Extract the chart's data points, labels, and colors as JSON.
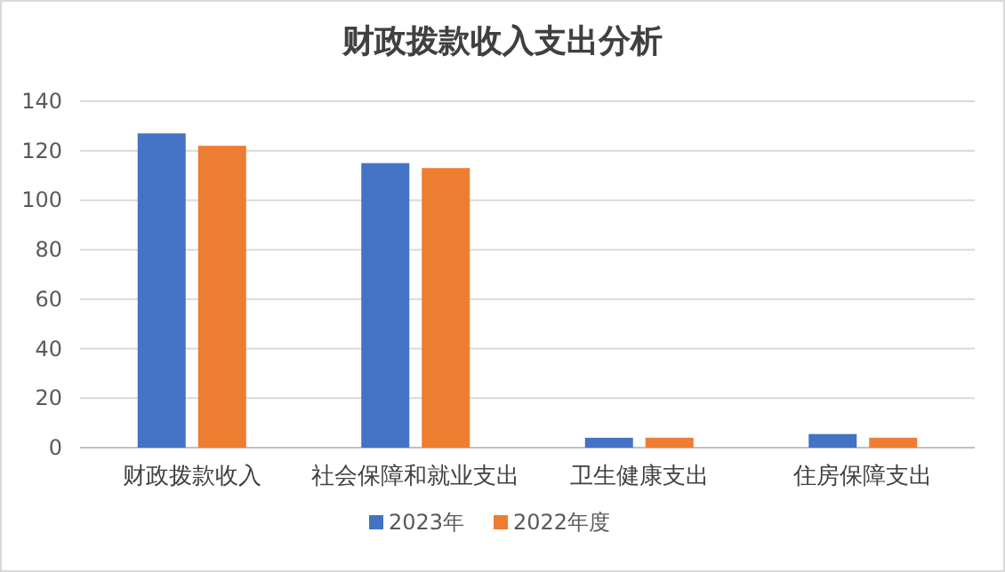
{
  "chart_data": {
    "type": "bar",
    "title": "财政拨款收入支出分析",
    "categories": [
      "财政拨款收入",
      "社会保障和就业支出",
      "卫生健康支出",
      "住房保障支出"
    ],
    "series": [
      {
        "name": "2023年",
        "color": "#4472c4",
        "values": [
          127,
          115,
          4,
          5.5
        ]
      },
      {
        "name": "2022年度",
        "color": "#ed7d31",
        "values": [
          122,
          113,
          4,
          4
        ]
      }
    ],
    "ylim": [
      0,
      140
    ],
    "yticks": [
      0,
      20,
      40,
      60,
      80,
      100,
      120,
      140
    ],
    "grid": "y",
    "legend": "bottom"
  }
}
